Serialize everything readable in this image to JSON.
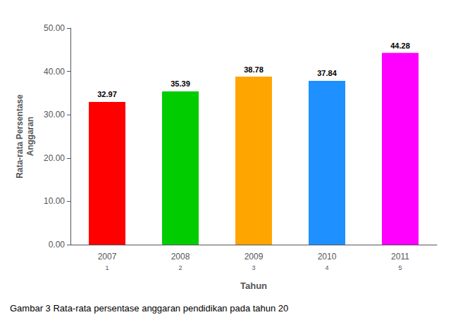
{
  "chart_data": {
    "type": "bar",
    "categories": [
      "2007",
      "2008",
      "2009",
      "2010",
      "2011"
    ],
    "sub_labels": [
      "1",
      "2",
      "3",
      "4",
      "5"
    ],
    "values": [
      32.97,
      35.39,
      38.78,
      37.84,
      44.28
    ],
    "colors": [
      "#ff0000",
      "#00cc00",
      "#ffa500",
      "#1e90ff",
      "#ff00ff"
    ],
    "ylabel": "Rata-rata Persentase\nAnggaran",
    "xlabel": "Tahun",
    "caption": "Gambar 3 Rata-rata persentase anggaran pendidikan pada tahun 20",
    "ylim": [
      0,
      50
    ],
    "yticks": [
      {
        "value": 0,
        "label": "0.00"
      },
      {
        "value": 10,
        "label": "10.00"
      },
      {
        "value": 20,
        "label": "20.00"
      },
      {
        "value": 30,
        "label": "30.00"
      },
      {
        "value": 40,
        "label": "40.00"
      },
      {
        "value": 50,
        "label": "50.00"
      }
    ],
    "data_labels": true,
    "grid": false
  }
}
